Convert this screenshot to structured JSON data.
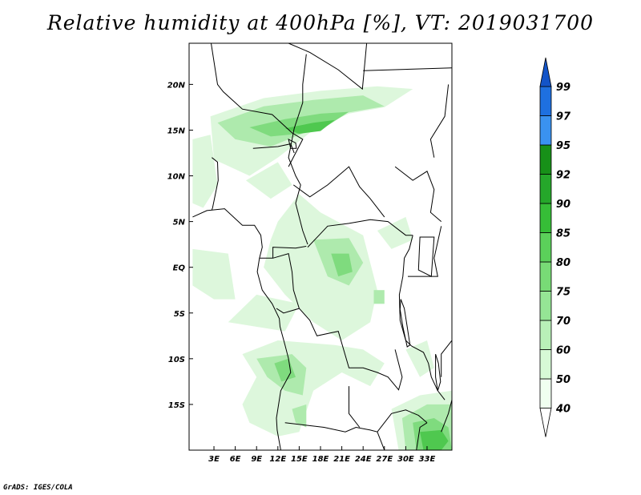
{
  "title": "Relative humidity at 400hPa [%], VT: 2019031700",
  "footer": "GrADS: IGES/COLA",
  "map": {
    "lon_range": [
      -0.5,
      36.5
    ],
    "lat_range": [
      -20,
      24.5
    ],
    "x_ticks": [
      {
        "lon": 3,
        "label": "3E"
      },
      {
        "lon": 6,
        "label": "6E"
      },
      {
        "lon": 9,
        "label": "9E"
      },
      {
        "lon": 12,
        "label": "12E"
      },
      {
        "lon": 15,
        "label": "15E"
      },
      {
        "lon": 18,
        "label": "18E"
      },
      {
        "lon": 21,
        "label": "21E"
      },
      {
        "lon": 24,
        "label": "24E"
      },
      {
        "lon": 27,
        "label": "27E"
      },
      {
        "lon": 30,
        "label": "30E"
      },
      {
        "lon": 33,
        "label": "33E"
      }
    ],
    "y_ticks": [
      {
        "lat": 20,
        "label": "20N"
      },
      {
        "lat": 15,
        "label": "15N"
      },
      {
        "lat": 10,
        "label": "10N"
      },
      {
        "lat": 5,
        "label": "5N"
      },
      {
        "lat": 0,
        "label": "EQ"
      },
      {
        "lat": -5,
        "label": "5S"
      },
      {
        "lat": -10,
        "label": "10S"
      },
      {
        "lat": -15,
        "label": "15S"
      }
    ],
    "humid_regions": [
      {
        "level": 1,
        "pts": [
          [
            2.5,
            16.5
          ],
          [
            10,
            18.5
          ],
          [
            18,
            19.3
          ],
          [
            26,
            19.8
          ],
          [
            31,
            19.5
          ],
          [
            27,
            17.5
          ],
          [
            22,
            16.8
          ],
          [
            17,
            15
          ],
          [
            12,
            12
          ],
          [
            8,
            10
          ],
          [
            3,
            11.8
          ]
        ]
      },
      {
        "level": 2,
        "pts": [
          [
            3.5,
            15.8
          ],
          [
            10,
            17.6
          ],
          [
            17,
            18.3
          ],
          [
            24,
            18.8
          ],
          [
            27,
            17.6
          ],
          [
            21,
            16.8
          ],
          [
            16,
            14.8
          ],
          [
            11,
            13.2
          ],
          [
            6,
            14
          ]
        ]
      },
      {
        "level": 3,
        "pts": [
          [
            8,
            15.3
          ],
          [
            13,
            16.2
          ],
          [
            18,
            16.8
          ],
          [
            22,
            17
          ],
          [
            19,
            15.5
          ],
          [
            15,
            14.6
          ],
          [
            11,
            14.3
          ]
        ]
      },
      {
        "level": 4,
        "pts": [
          [
            13,
            15.2
          ],
          [
            17,
            15.8
          ],
          [
            20,
            16.1
          ],
          [
            18,
            14.9
          ],
          [
            15,
            14.6
          ]
        ]
      },
      {
        "level": 1,
        "pts": [
          [
            0,
            14
          ],
          [
            2.5,
            14.5
          ],
          [
            3.5,
            9
          ],
          [
            1.5,
            6.5
          ],
          [
            0,
            7
          ]
        ]
      },
      {
        "level": 1,
        "pts": [
          [
            7.5,
            9.5
          ],
          [
            12,
            11.5
          ],
          [
            14,
            9
          ],
          [
            11,
            7.5
          ]
        ]
      },
      {
        "level": 1,
        "pts": [
          [
            0,
            2
          ],
          [
            5,
            1.5
          ],
          [
            6,
            -3.5
          ],
          [
            3,
            -3.5
          ],
          [
            0,
            -2
          ]
        ]
      },
      {
        "level": 1,
        "pts": [
          [
            12,
            5
          ],
          [
            15,
            8
          ],
          [
            18,
            6
          ],
          [
            24,
            3.5
          ],
          [
            26,
            -2.5
          ],
          [
            25,
            -6
          ],
          [
            21,
            -8
          ],
          [
            17,
            -6
          ],
          [
            13,
            -3
          ],
          [
            10,
            0
          ],
          [
            11,
            3
          ]
        ]
      },
      {
        "level": 2,
        "pts": [
          [
            17,
            3
          ],
          [
            22,
            3.2
          ],
          [
            24,
            0.5
          ],
          [
            22,
            -2
          ],
          [
            19,
            -1
          ]
        ]
      },
      {
        "level": 3,
        "pts": [
          [
            19.5,
            1.5
          ],
          [
            22,
            1.5
          ],
          [
            22.5,
            -0.5
          ],
          [
            20.5,
            -1
          ]
        ]
      },
      {
        "level": 2,
        "pts": [
          [
            25.5,
            -2.5
          ],
          [
            27,
            -2.5
          ],
          [
            27,
            -4
          ],
          [
            25.5,
            -4
          ]
        ]
      },
      {
        "level": 1,
        "pts": [
          [
            26,
            4
          ],
          [
            30,
            5.5
          ],
          [
            31,
            3
          ],
          [
            28,
            2
          ]
        ]
      },
      {
        "level": 1,
        "pts": [
          [
            5,
            -6
          ],
          [
            13,
            -7
          ],
          [
            15,
            -4
          ],
          [
            9,
            -3
          ]
        ]
      },
      {
        "level": 1,
        "pts": [
          [
            7,
            -9.5
          ],
          [
            12,
            -8
          ],
          [
            20,
            -8.5
          ],
          [
            24,
            -9
          ],
          [
            27,
            -10.5
          ],
          [
            25,
            -13
          ],
          [
            21,
            -11.5
          ],
          [
            17,
            -13.5
          ],
          [
            15,
            -18
          ],
          [
            12,
            -18.5
          ],
          [
            8,
            -17
          ],
          [
            7,
            -15
          ],
          [
            9,
            -12
          ]
        ]
      },
      {
        "level": 2,
        "pts": [
          [
            9,
            -10
          ],
          [
            14,
            -9.5
          ],
          [
            16,
            -11
          ],
          [
            15.5,
            -14
          ],
          [
            13,
            -13.5
          ],
          [
            10.5,
            -12
          ]
        ]
      },
      {
        "level": 3,
        "pts": [
          [
            11.5,
            -10.5
          ],
          [
            13.5,
            -10
          ],
          [
            14.5,
            -12
          ],
          [
            12.5,
            -12.5
          ]
        ]
      },
      {
        "level": 2,
        "pts": [
          [
            14,
            -15.5
          ],
          [
            16,
            -15
          ],
          [
            16,
            -17.5
          ],
          [
            14.5,
            -17
          ]
        ]
      },
      {
        "level": 1,
        "pts": [
          [
            30,
            -9
          ],
          [
            33,
            -8
          ],
          [
            34,
            -11
          ],
          [
            32,
            -12
          ]
        ]
      },
      {
        "level": 1,
        "pts": [
          [
            28,
            -15.5
          ],
          [
            32,
            -14
          ],
          [
            36.5,
            -13.5
          ],
          [
            36.5,
            -20
          ],
          [
            29,
            -20
          ]
        ]
      },
      {
        "level": 2,
        "pts": [
          [
            29.5,
            -16.5
          ],
          [
            33,
            -15
          ],
          [
            36.5,
            -15
          ],
          [
            36.5,
            -20
          ],
          [
            30,
            -20
          ]
        ]
      },
      {
        "level": 3,
        "pts": [
          [
            31,
            -17
          ],
          [
            34,
            -16.5
          ],
          [
            36,
            -17.5
          ],
          [
            36.5,
            -20
          ],
          [
            31.5,
            -20
          ]
        ]
      },
      {
        "level": 4,
        "pts": [
          [
            32,
            -18
          ],
          [
            35,
            -17.8
          ],
          [
            36,
            -19
          ],
          [
            35,
            -20
          ],
          [
            32.5,
            -20
          ]
        ]
      }
    ],
    "borders": [
      [
        [
          0,
          5.5
        ],
        [
          2,
          6.2
        ],
        [
          4.5,
          6.4
        ],
        [
          7,
          4.6
        ],
        [
          8.7,
          4.6
        ],
        [
          9.6,
          3.5
        ],
        [
          9.8,
          2.2
        ],
        [
          9.4,
          1
        ],
        [
          9.1,
          -0.5
        ],
        [
          9.8,
          -2.5
        ],
        [
          11.2,
          -4
        ],
        [
          12.2,
          -5.6
        ],
        [
          12.3,
          -6.5
        ],
        [
          13,
          -8.5
        ],
        [
          13.5,
          -10
        ],
        [
          13.8,
          -11.5
        ],
        [
          12.4,
          -13.5
        ],
        [
          11.8,
          -16.5
        ],
        [
          11.9,
          -17.8
        ],
        [
          12.4,
          -20
        ]
      ],
      [
        [
          2.6,
          24.5
        ],
        [
          3.5,
          20
        ],
        [
          4.3,
          19.2
        ],
        [
          7,
          17.3
        ],
        [
          11.2,
          16.7
        ],
        [
          14,
          14.7
        ],
        [
          15.5,
          14
        ],
        [
          13.5,
          11
        ]
      ],
      [
        [
          13.5,
          24.5
        ],
        [
          16.5,
          23.5
        ],
        [
          20.5,
          21.6
        ],
        [
          23.9,
          19.5
        ],
        [
          24.5,
          24.5
        ]
      ],
      [
        [
          16,
          23.3
        ],
        [
          15.5,
          20
        ],
        [
          15.5,
          18
        ],
        [
          14.3,
          15.2
        ],
        [
          13.5,
          12
        ],
        [
          14.5,
          10
        ],
        [
          15.2,
          9
        ],
        [
          14.5,
          7
        ],
        [
          15.5,
          4
        ],
        [
          16.2,
          2.5
        ]
      ],
      [
        [
          8.5,
          13
        ],
        [
          12,
          13.2
        ],
        [
          13.8,
          13.5
        ],
        [
          14.3,
          12.5
        ]
      ],
      [
        [
          2.7,
          12
        ],
        [
          3.5,
          11.5
        ],
        [
          3.6,
          9.5
        ],
        [
          2.8,
          6.5
        ],
        [
          2.7,
          6.3
        ]
      ],
      [
        [
          14.2,
          9
        ],
        [
          16.5,
          7.7
        ],
        [
          19,
          9
        ],
        [
          22,
          11
        ],
        [
          23.5,
          8.8
        ],
        [
          25,
          7.5
        ],
        [
          27,
          5.5
        ]
      ],
      [
        [
          16.2,
          2.2
        ],
        [
          17.8,
          3.5
        ],
        [
          19,
          4.5
        ],
        [
          22,
          4.8
        ],
        [
          25,
          5.2
        ],
        [
          27.5,
          5
        ],
        [
          30,
          3.5
        ],
        [
          31,
          3.5
        ]
      ],
      [
        [
          31,
          3.5
        ],
        [
          30.5,
          2
        ],
        [
          29.8,
          1
        ],
        [
          29.6,
          -1
        ],
        [
          29.1,
          -3
        ],
        [
          29.2,
          -5.8
        ],
        [
          30,
          -8
        ],
        [
          30.8,
          -8.6
        ]
      ],
      [
        [
          30.8,
          -8.6
        ],
        [
          32.5,
          -9.3
        ],
        [
          33.2,
          -10.5
        ],
        [
          33.6,
          -12
        ],
        [
          34.5,
          -13.5
        ],
        [
          35.5,
          -14.5
        ]
      ],
      [
        [
          11.8,
          -4.5
        ],
        [
          12.8,
          -5
        ],
        [
          15,
          -4.5
        ],
        [
          16.5,
          -5.8
        ],
        [
          17.5,
          -7.5
        ],
        [
          20.5,
          -7
        ],
        [
          22,
          -11
        ],
        [
          24,
          -11
        ],
        [
          26,
          -11.5
        ],
        [
          27.5,
          -12
        ],
        [
          29,
          -13.4
        ],
        [
          29.5,
          -12
        ],
        [
          28.5,
          -9
        ]
      ],
      [
        [
          13,
          -17
        ],
        [
          18.5,
          -17.5
        ],
        [
          21.5,
          -18
        ],
        [
          23,
          -17.5
        ],
        [
          25,
          -17.8
        ],
        [
          26,
          -18
        ],
        [
          28,
          -16
        ],
        [
          30,
          -15.6
        ],
        [
          31.8,
          -16.2
        ],
        [
          33,
          -17
        ]
      ],
      [
        [
          22,
          -13
        ],
        [
          22,
          -16
        ],
        [
          23.5,
          -17.5
        ]
      ],
      [
        [
          24,
          21.5
        ],
        [
          36.5,
          21.8
        ]
      ],
      [
        [
          28.5,
          11
        ],
        [
          31,
          9.5
        ],
        [
          33,
          10.5
        ],
        [
          34,
          8.5
        ],
        [
          33.5,
          6
        ],
        [
          35,
          5
        ]
      ],
      [
        [
          34,
          12
        ],
        [
          33.5,
          14
        ],
        [
          35.5,
          16.5
        ],
        [
          36,
          20
        ]
      ],
      [
        [
          30.3,
          -1
        ],
        [
          33.5,
          -1
        ],
        [
          34.5,
          -1
        ],
        [
          34,
          1
        ],
        [
          35,
          4.5
        ]
      ],
      [
        [
          16,
          2.3
        ],
        [
          14.5,
          2.1
        ],
        [
          11.3,
          2.2
        ],
        [
          11.3,
          1
        ]
      ],
      [
        [
          9.4,
          1
        ],
        [
          11.3,
          1
        ],
        [
          13.5,
          1.5
        ],
        [
          14,
          -0.5
        ],
        [
          14.2,
          -2.5
        ],
        [
          15,
          -4.5
        ]
      ],
      [
        [
          36.5,
          -8
        ],
        [
          35,
          -9.5
        ],
        [
          35,
          -12
        ]
      ],
      [
        [
          31.5,
          -20
        ],
        [
          32,
          -17.5
        ],
        [
          33,
          -17
        ]
      ],
      [
        [
          36.5,
          -14.5
        ],
        [
          36,
          -16
        ],
        [
          35.5,
          -17
        ],
        [
          35,
          -18
        ]
      ],
      [
        [
          27,
          -20
        ],
        [
          26,
          -18
        ]
      ]
    ],
    "lakes": [
      [
        [
          32,
          3.3
        ],
        [
          34,
          3.3
        ],
        [
          33.6,
          -1
        ],
        [
          31.8,
          -0.3
        ]
      ],
      [
        [
          29.3,
          -3.5
        ],
        [
          29.8,
          -4.5
        ],
        [
          30.2,
          -6.5
        ],
        [
          30.6,
          -8.5
        ],
        [
          30.2,
          -8.7
        ],
        [
          29.6,
          -6.5
        ],
        [
          29.2,
          -4.6
        ]
      ],
      [
        [
          34.2,
          -9.5
        ],
        [
          34.6,
          -10.5
        ],
        [
          34.9,
          -12.5
        ],
        [
          34.5,
          -13.5
        ],
        [
          34.2,
          -12
        ]
      ],
      [
        [
          13.5,
          14
        ],
        [
          14.5,
          13.6
        ],
        [
          14.6,
          13
        ],
        [
          13.8,
          13
        ]
      ]
    ]
  },
  "colorbar": {
    "colors": [
      "#f0fff0",
      "#d7f9d6",
      "#b9f0b8",
      "#95e595",
      "#78db76",
      "#5bd05a",
      "#36bd37",
      "#25a72a",
      "#179018",
      "#3a92f0",
      "#1e70e0",
      "#1354c8"
    ],
    "labels": [
      "40",
      "50",
      "60",
      "70",
      "75",
      "80",
      "85",
      "90",
      "92",
      "95",
      "97",
      "99"
    ]
  },
  "colors": {
    "border": "#000000",
    "frame": "#000000",
    "level_fill": [
      "#ffffff",
      "#ddf7dc",
      "#aeeaad",
      "#7fdb7e",
      "#4fc84f"
    ]
  }
}
